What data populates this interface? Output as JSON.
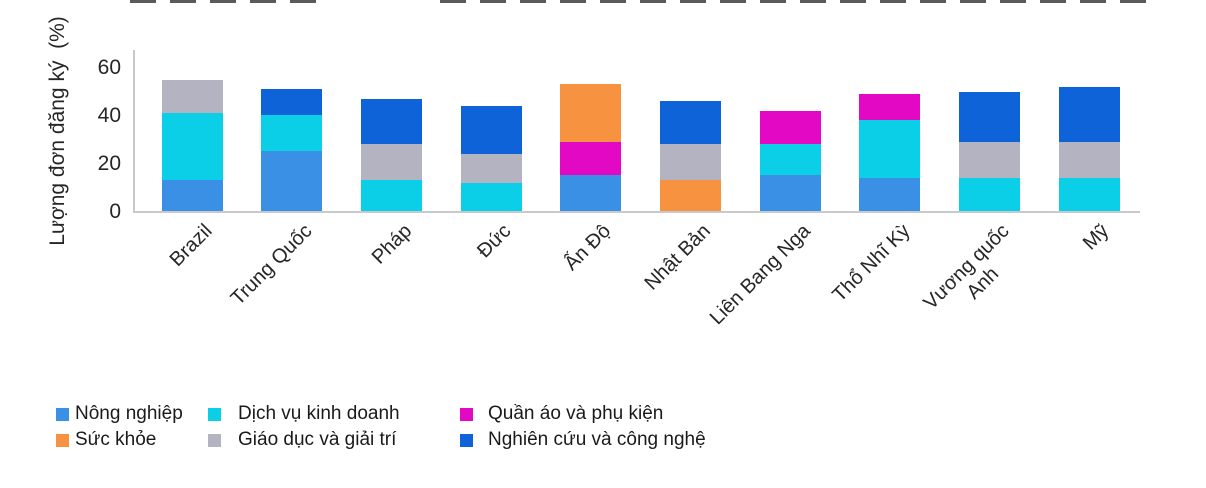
{
  "chart_data": {
    "type": "bar",
    "stacked": true,
    "ylabel": "Lượng đơn đăng ký  (%)",
    "xlabel": "",
    "ylim": [
      0,
      60
    ],
    "yticks": [
      0,
      20,
      40,
      60
    ],
    "grid": false,
    "legend_position": "bottom",
    "categories": [
      "Brazil",
      "Trung Quốc",
      "Pháp",
      "Đức",
      "Ấn Độ",
      "Nhật Bản",
      "Liên Bang Nga",
      "Thổ Nhĩ Kỳ",
      "Vương quốc Anh",
      "Mỹ"
    ],
    "legend": [
      {
        "name": "Nông nghiệp",
        "color": "#3A90E5"
      },
      {
        "name": "Sức khỏe",
        "color": "#F79240"
      },
      {
        "name": "Dịch vụ kinh doanh",
        "color": "#0ACFE6"
      },
      {
        "name": "Giáo dục và giải trí",
        "color": "#B3B3C2"
      },
      {
        "name": "Quần áo và phụ kiện",
        "color": "#E208C4"
      },
      {
        "name": "Nghiên cứu và công nghệ",
        "color": "#0F63D8"
      }
    ],
    "bars": [
      {
        "category": "Brazil",
        "tick_label": "Brazil",
        "segments": [
          {
            "series": "Nông nghiệp",
            "value": 13
          },
          {
            "series": "Dịch vụ kinh doanh",
            "value": 28
          },
          {
            "series": "Giáo dục và giải trí",
            "value": 14
          }
        ]
      },
      {
        "category": "Trung Quốc",
        "tick_label": "Trung Quốc",
        "segments": [
          {
            "series": "Nông nghiệp",
            "value": 25
          },
          {
            "series": "Dịch vụ kinh doanh",
            "value": 15
          },
          {
            "series": "Nghiên cứu và công nghệ",
            "value": 11
          }
        ]
      },
      {
        "category": "Pháp",
        "tick_label": "Pháp",
        "segments": [
          {
            "series": "Dịch vụ kinh doanh",
            "value": 13
          },
          {
            "series": "Giáo dục và giải trí",
            "value": 15
          },
          {
            "series": "Nghiên cứu và công nghệ",
            "value": 19
          }
        ]
      },
      {
        "category": "Đức",
        "tick_label": "Đức",
        "segments": [
          {
            "series": "Dịch vụ kinh doanh",
            "value": 12
          },
          {
            "series": "Giáo dục và giải trí",
            "value": 12
          },
          {
            "series": "Nghiên cứu và công nghệ",
            "value": 20
          }
        ]
      },
      {
        "category": "Ấn Độ",
        "tick_label": "Ấn Độ",
        "segments": [
          {
            "series": "Nông nghiệp",
            "value": 15
          },
          {
            "series": "Quần áo và phụ kiện",
            "value": 14
          },
          {
            "series": "Sức khỏe",
            "value": 24
          }
        ]
      },
      {
        "category": "Nhật Bản",
        "tick_label": "Nhật Bản",
        "segments": [
          {
            "series": "Sức khỏe",
            "value": 13
          },
          {
            "series": "Giáo dục và giải trí",
            "value": 15
          },
          {
            "series": "Nghiên cứu và công nghệ",
            "value": 18
          }
        ]
      },
      {
        "category": "Liên Bang Nga",
        "tick_label": "Liên Bang Nga",
        "segments": [
          {
            "series": "Nông nghiệp",
            "value": 15
          },
          {
            "series": "Dịch vụ kinh doanh",
            "value": 13
          },
          {
            "series": "Quần áo và phụ kiện",
            "value": 14
          }
        ]
      },
      {
        "category": "Thổ Nhĩ Kỳ",
        "tick_label": "Thổ Nhĩ Kỳ",
        "segments": [
          {
            "series": "Nông nghiệp",
            "value": 14
          },
          {
            "series": "Dịch vụ kinh doanh",
            "value": 24
          },
          {
            "series": "Quần áo và phụ kiện",
            "value": 11
          }
        ]
      },
      {
        "category": "Vương quốc Anh",
        "tick_label": "Vương quốc\nAnh",
        "segments": [
          {
            "series": "Dịch vụ kinh doanh",
            "value": 14
          },
          {
            "series": "Giáo dục và giải trí",
            "value": 15
          },
          {
            "series": "Nghiên cứu và công nghệ",
            "value": 21
          }
        ]
      },
      {
        "category": "Mỹ",
        "tick_label": "Mỹ",
        "segments": [
          {
            "series": "Dịch vụ kinh doanh",
            "value": 14
          },
          {
            "series": "Giáo dục và giải trí",
            "value": 15
          },
          {
            "series": "Nghiên cứu và công nghệ",
            "value": 23
          }
        ]
      }
    ]
  }
}
